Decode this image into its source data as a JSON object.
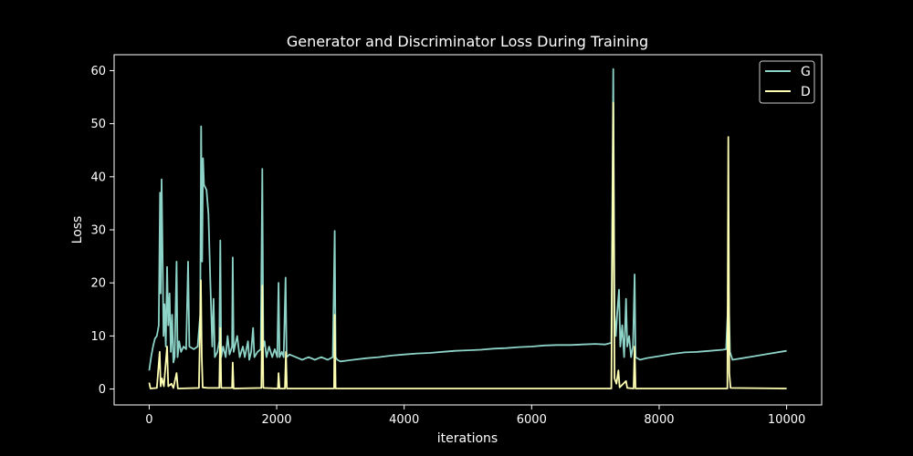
{
  "colors": {
    "background": "#000000",
    "axes": "#ffffff",
    "text": "#ffffff",
    "g_series": "#8dd3c7",
    "d_series": "#ffffb3"
  },
  "chart_data": {
    "type": "line",
    "title": "Generator and Discriminator Loss During Training",
    "xlabel": "iterations",
    "ylabel": "Loss",
    "xlim": [
      -550,
      10550
    ],
    "ylim": [
      -3,
      63
    ],
    "xticks": [
      0,
      2000,
      4000,
      6000,
      8000,
      10000
    ],
    "yticks": [
      0,
      10,
      20,
      30,
      40,
      50,
      60
    ],
    "grid": false,
    "legend_position": "top-right",
    "series": [
      {
        "name": "G",
        "color": "#8dd3c7",
        "points": [
          [
            0,
            3.5
          ],
          [
            30,
            6
          ],
          [
            60,
            8
          ],
          [
            90,
            9.5
          ],
          [
            120,
            10
          ],
          [
            150,
            12
          ],
          [
            170,
            37
          ],
          [
            180,
            18
          ],
          [
            195,
            39.5
          ],
          [
            210,
            25
          ],
          [
            225,
            10
          ],
          [
            240,
            16
          ],
          [
            260,
            8
          ],
          [
            280,
            23
          ],
          [
            300,
            12
          ],
          [
            320,
            18
          ],
          [
            340,
            7
          ],
          [
            360,
            14
          ],
          [
            380,
            5
          ],
          [
            400,
            6
          ],
          [
            430,
            24
          ],
          [
            445,
            6
          ],
          [
            470,
            9
          ],
          [
            500,
            7
          ],
          [
            540,
            8
          ],
          [
            580,
            7.5
          ],
          [
            610,
            24
          ],
          [
            630,
            8
          ],
          [
            700,
            7.5
          ],
          [
            760,
            8
          ],
          [
            800,
            14
          ],
          [
            815,
            49.5
          ],
          [
            830,
            24
          ],
          [
            845,
            43.5
          ],
          [
            860,
            38.5
          ],
          [
            900,
            37.5
          ],
          [
            930,
            33
          ],
          [
            960,
            20
          ],
          [
            990,
            8
          ],
          [
            1010,
            17
          ],
          [
            1030,
            6
          ],
          [
            1070,
            7
          ],
          [
            1100,
            9
          ],
          [
            1115,
            28
          ],
          [
            1130,
            6
          ],
          [
            1160,
            8
          ],
          [
            1200,
            6
          ],
          [
            1230,
            10
          ],
          [
            1260,
            6.5
          ],
          [
            1300,
            8
          ],
          [
            1310,
            24.8
          ],
          [
            1325,
            7
          ],
          [
            1380,
            10
          ],
          [
            1420,
            6
          ],
          [
            1470,
            8
          ],
          [
            1500,
            6
          ],
          [
            1550,
            9
          ],
          [
            1570,
            5.5
          ],
          [
            1600,
            7
          ],
          [
            1630,
            11.5
          ],
          [
            1650,
            6
          ],
          [
            1700,
            7
          ],
          [
            1750,
            7.5
          ],
          [
            1775,
            41.5
          ],
          [
            1790,
            8
          ],
          [
            1810,
            9
          ],
          [
            1840,
            6
          ],
          [
            1880,
            8
          ],
          [
            1930,
            6
          ],
          [
            1970,
            7.5
          ],
          [
            2010,
            6
          ],
          [
            2030,
            20
          ],
          [
            2045,
            6
          ],
          [
            2080,
            7
          ],
          [
            2110,
            6
          ],
          [
            2140,
            21
          ],
          [
            2155,
            6
          ],
          [
            2200,
            6.5
          ],
          [
            2300,
            6
          ],
          [
            2400,
            5.5
          ],
          [
            2500,
            6
          ],
          [
            2600,
            5.5
          ],
          [
            2700,
            6
          ],
          [
            2800,
            5.5
          ],
          [
            2880,
            6
          ],
          [
            2910,
            29.8
          ],
          [
            2925,
            6
          ],
          [
            2950,
            5.5
          ],
          [
            3000,
            5.2
          ],
          [
            3200,
            5.5
          ],
          [
            3400,
            5.8
          ],
          [
            3600,
            6
          ],
          [
            3800,
            6.3
          ],
          [
            4000,
            6.5
          ],
          [
            4200,
            6.7
          ],
          [
            4400,
            6.8
          ],
          [
            4600,
            7
          ],
          [
            4800,
            7.2
          ],
          [
            5000,
            7.3
          ],
          [
            5200,
            7.4
          ],
          [
            5400,
            7.6
          ],
          [
            5600,
            7.7
          ],
          [
            5800,
            7.9
          ],
          [
            6000,
            8
          ],
          [
            6200,
            8.2
          ],
          [
            6400,
            8.3
          ],
          [
            6600,
            8.3
          ],
          [
            6800,
            8.4
          ],
          [
            7000,
            8.5
          ],
          [
            7150,
            8.4
          ],
          [
            7250,
            8.7
          ],
          [
            7280,
            60.3
          ],
          [
            7300,
            14
          ],
          [
            7320,
            10
          ],
          [
            7340,
            14
          ],
          [
            7370,
            18.7
          ],
          [
            7390,
            8
          ],
          [
            7420,
            12
          ],
          [
            7450,
            6
          ],
          [
            7480,
            17
          ],
          [
            7500,
            8
          ],
          [
            7530,
            10
          ],
          [
            7560,
            6
          ],
          [
            7590,
            8
          ],
          [
            7615,
            21.6
          ],
          [
            7630,
            6
          ],
          [
            7700,
            5.5
          ],
          [
            7800,
            5.8
          ],
          [
            7900,
            6
          ],
          [
            8000,
            6.2
          ],
          [
            8200,
            6.6
          ],
          [
            8400,
            6.9
          ],
          [
            8600,
            7
          ],
          [
            8800,
            7.2
          ],
          [
            9000,
            7.4
          ],
          [
            9050,
            7.5
          ],
          [
            9090,
            18.5
          ],
          [
            9110,
            7
          ],
          [
            9150,
            5.5
          ],
          [
            9300,
            5.8
          ],
          [
            9500,
            6.2
          ],
          [
            9700,
            6.6
          ],
          [
            9900,
            7
          ],
          [
            10000,
            7.2
          ]
        ]
      },
      {
        "name": "D",
        "color": "#ffffb3",
        "points": [
          [
            0,
            1.2
          ],
          [
            20,
            0.1
          ],
          [
            120,
            0.2
          ],
          [
            165,
            7
          ],
          [
            180,
            0.5
          ],
          [
            200,
            2
          ],
          [
            230,
            0.5
          ],
          [
            280,
            8
          ],
          [
            300,
            0.5
          ],
          [
            350,
            1
          ],
          [
            380,
            0.2
          ],
          [
            430,
            3
          ],
          [
            450,
            0.1
          ],
          [
            780,
            0.2
          ],
          [
            810,
            20.5
          ],
          [
            825,
            6
          ],
          [
            840,
            0.3
          ],
          [
            920,
            0.2
          ],
          [
            1100,
            0.2
          ],
          [
            1115,
            11.5
          ],
          [
            1130,
            0.2
          ],
          [
            1300,
            0.2
          ],
          [
            1310,
            5
          ],
          [
            1325,
            0.1
          ],
          [
            1760,
            0.2
          ],
          [
            1775,
            19.5
          ],
          [
            1790,
            0.2
          ],
          [
            2020,
            0.1
          ],
          [
            2030,
            3
          ],
          [
            2045,
            0.1
          ],
          [
            2130,
            0.1
          ],
          [
            2145,
            7
          ],
          [
            2160,
            0.1
          ],
          [
            2900,
            0.1
          ],
          [
            2910,
            14
          ],
          [
            2925,
            0.1
          ],
          [
            7250,
            0.1
          ],
          [
            7280,
            54
          ],
          [
            7300,
            2
          ],
          [
            7330,
            1
          ],
          [
            7360,
            3.5
          ],
          [
            7380,
            0.3
          ],
          [
            7480,
            1.5
          ],
          [
            7500,
            0.2
          ],
          [
            7600,
            0.1
          ],
          [
            7615,
            8
          ],
          [
            7630,
            0.1
          ],
          [
            9070,
            0.1
          ],
          [
            9085,
            47.5
          ],
          [
            9100,
            3
          ],
          [
            9120,
            0.2
          ],
          [
            10000,
            0.1
          ]
        ]
      }
    ]
  }
}
